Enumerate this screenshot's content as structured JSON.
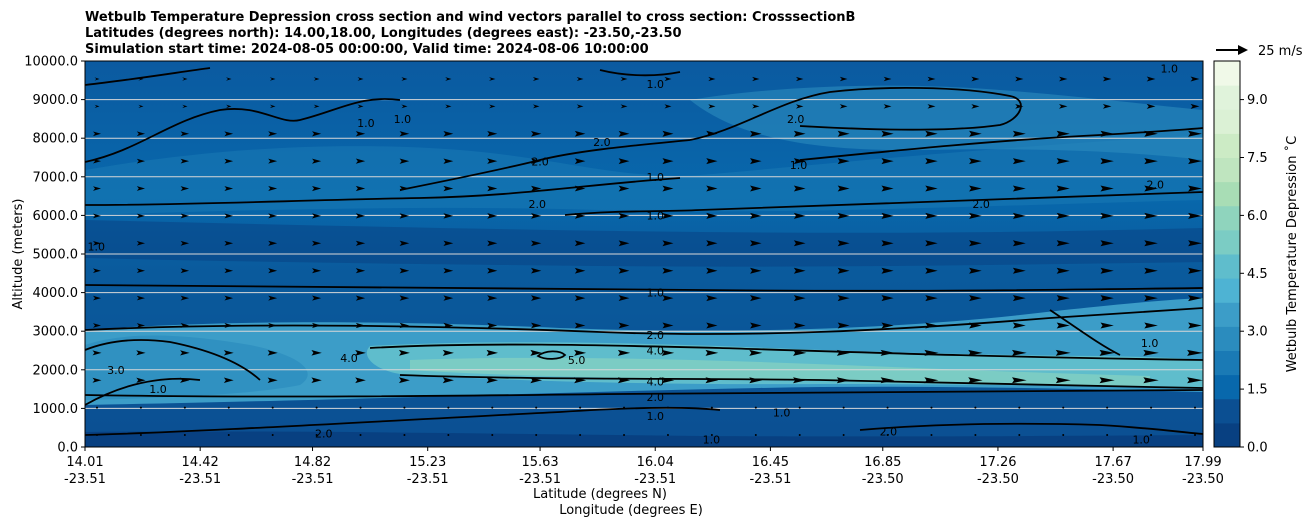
{
  "chart_data": {
    "type": "heatmap",
    "title": [
      "Wetbulb Temperature Depression cross section and wind vectors parallel to cross section: CrosssectionB",
      "Latitudes (degrees north): 14.00,18.00, Longitudes (degrees east): -23.50,-23.50",
      "Simulation start time: 2024-08-05 00:00:00, Valid time: 2024-08-06 10:00:00"
    ],
    "xlabel": "Latitude (degrees N)",
    "xlabel2": "Longitude (degrees E)",
    "ylabel": "Altitude (meters)",
    "colorbar_label": "Wetbulb Temperature Depression ˚C",
    "quiver_key_label": "25 m/s",
    "x_ticks": [
      {
        "lat": "14.01",
        "lon": "-23.51"
      },
      {
        "lat": "14.42",
        "lon": "-23.51"
      },
      {
        "lat": "14.82",
        "lon": "-23.51"
      },
      {
        "lat": "15.23",
        "lon": "-23.51"
      },
      {
        "lat": "15.63",
        "lon": "-23.51"
      },
      {
        "lat": "16.04",
        "lon": "-23.51"
      },
      {
        "lat": "16.45",
        "lon": "-23.51"
      },
      {
        "lat": "16.85",
        "lon": "-23.50"
      },
      {
        "lat": "17.26",
        "lon": "-23.50"
      },
      {
        "lat": "17.67",
        "lon": "-23.50"
      },
      {
        "lat": "17.99",
        "lon": "-23.50"
      }
    ],
    "y_ticks": [
      "0.0",
      "1000.0",
      "2000.0",
      "3000.0",
      "4000.0",
      "5000.0",
      "6000.0",
      "7000.0",
      "8000.0",
      "9000.0",
      "10000.0"
    ],
    "ylim": [
      0,
      10000
    ],
    "xlim": [
      14.01,
      17.99
    ],
    "colorbar_ticks": [
      "0.0",
      "1.5",
      "3.0",
      "4.5",
      "6.0",
      "7.5",
      "9.0"
    ],
    "colorbar_range": [
      0,
      10
    ],
    "grid": "horizontal",
    "colors": [
      "#084081",
      "#0b4f92",
      "#0868ac",
      "#1a7ab5",
      "#2b8cbe",
      "#3c9dc8",
      "#4eb3d3",
      "#5fbdcc",
      "#7bccc4",
      "#8fd4bd",
      "#a8ddb5",
      "#bfe5bf",
      "#ccebc5",
      "#dbf1d5",
      "#e0f3db",
      "#f0f9e8"
    ],
    "contour_labels": [
      {
        "text": "1.0",
        "x": 14.05,
        "y": 5200
      },
      {
        "text": "3.0",
        "x": 14.12,
        "y": 2000
      },
      {
        "text": "1.0",
        "x": 14.27,
        "y": 1500
      },
      {
        "text": "1.0",
        "x": 15.01,
        "y": 8400
      },
      {
        "text": "1.0",
        "x": 15.14,
        "y": 8500
      },
      {
        "text": "4.0",
        "x": 14.95,
        "y": 2300
      },
      {
        "text": "2.0",
        "x": 14.86,
        "y": 350
      },
      {
        "text": "2.0",
        "x": 15.63,
        "y": 7400
      },
      {
        "text": "2.0",
        "x": 15.62,
        "y": 6300
      },
      {
        "text": "2.0",
        "x": 15.85,
        "y": 7900
      },
      {
        "text": "5.0",
        "x": 15.76,
        "y": 2250
      },
      {
        "text": "1.0",
        "x": 16.04,
        "y": 9400
      },
      {
        "text": "1.0",
        "x": 16.04,
        "y": 7000
      },
      {
        "text": "1.0",
        "x": 16.04,
        "y": 6000
      },
      {
        "text": "1.0",
        "x": 16.04,
        "y": 4000
      },
      {
        "text": "2.0",
        "x": 16.04,
        "y": 2900
      },
      {
        "text": "4.0",
        "x": 16.04,
        "y": 2500
      },
      {
        "text": "4.0",
        "x": 16.04,
        "y": 1700
      },
      {
        "text": "2.0",
        "x": 16.04,
        "y": 1300
      },
      {
        "text": "1.0",
        "x": 16.04,
        "y": 800
      },
      {
        "text": "1.0",
        "x": 16.24,
        "y": 200
      },
      {
        "text": "2.0",
        "x": 16.54,
        "y": 8500
      },
      {
        "text": "1.0",
        "x": 16.55,
        "y": 7300
      },
      {
        "text": "1.0",
        "x": 16.49,
        "y": 900
      },
      {
        "text": "2.0",
        "x": 16.87,
        "y": 400
      },
      {
        "text": "2.0",
        "x": 17.2,
        "y": 6300
      },
      {
        "text": "2.0",
        "x": 17.82,
        "y": 6800
      },
      {
        "text": "1.0",
        "x": 17.87,
        "y": 9800
      },
      {
        "text": "1.0",
        "x": 17.8,
        "y": 2700
      },
      {
        "text": "1.0",
        "x": 17.77,
        "y": 200
      }
    ]
  }
}
